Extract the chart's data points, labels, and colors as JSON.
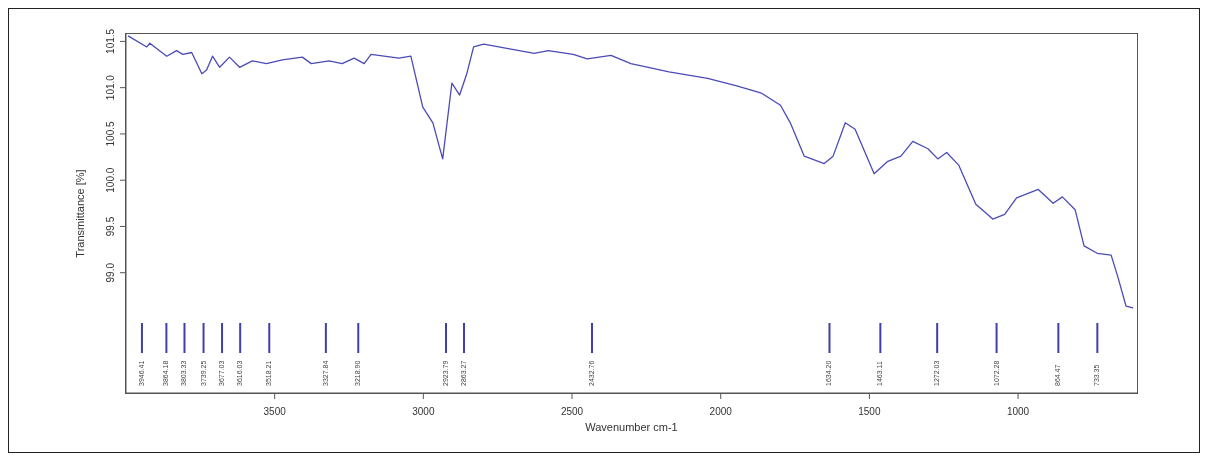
{
  "chart_data": {
    "type": "line",
    "xlabel": "Wavenumber cm-1",
    "ylabel": "Transmittance [%]",
    "xlim": [
      4000,
      600
    ],
    "xticks": [
      3500,
      3000,
      2500,
      2000,
      1500,
      1000
    ],
    "ylim": [
      97.7,
      101.58
    ],
    "yticks": [
      {
        "value": 101.5,
        "label": "101.5"
      },
      {
        "value": 101,
        "label": "101.0"
      },
      {
        "value": 100.5,
        "label": "100.5"
      },
      {
        "value": 100,
        "label": "100.0"
      },
      {
        "value": 99.5,
        "label": "99.5"
      },
      {
        "value": 99,
        "label": "99.0"
      }
    ],
    "grid": false,
    "legend": false,
    "marker": "none",
    "line_style": "solid",
    "series": [
      {
        "color": "#4b4bb8",
        "x": [
          3993,
          3930,
          3920,
          3863,
          3830,
          3809,
          3779,
          3745,
          3729,
          3709,
          3685,
          3652,
          3618,
          3575,
          3528,
          3474,
          3407,
          3377,
          3317,
          3273,
          3233,
          3199,
          3176,
          3082,
          3042,
          3002,
          2968,
          2935,
          2904,
          2878,
          2854,
          2831,
          2797,
          2710,
          2627,
          2580,
          2496,
          2449,
          2369,
          2302,
          2174,
          2044,
          1946,
          1863,
          1799,
          1766,
          1719,
          1652,
          1622,
          1581,
          1548,
          1484,
          1440,
          1394,
          1354,
          1303,
          1270,
          1240,
          1199,
          1142,
          1085,
          1045,
          1005,
          932,
          882,
          851,
          808,
          778,
          734,
          687,
          664,
          637,
          613
        ],
        "values": [
          101.56,
          101.44,
          101.48,
          101.34,
          101.4,
          101.36,
          101.38,
          101.15,
          101.19,
          101.34,
          101.22,
          101.33,
          101.22,
          101.29,
          101.26,
          101.3,
          101.33,
          101.26,
          101.29,
          101.26,
          101.32,
          101.26,
          101.36,
          101.32,
          101.34,
          100.79,
          100.62,
          100.23,
          101.05,
          100.92,
          101.15,
          101.44,
          101.47,
          101.42,
          101.37,
          101.4,
          101.36,
          101.31,
          101.35,
          101.26,
          101.17,
          101.1,
          101.02,
          100.94,
          100.81,
          100.62,
          100.26,
          100.18,
          100.26,
          100.62,
          100.55,
          100.07,
          100.2,
          100.26,
          100.42,
          100.34,
          100.23,
          100.3,
          100.16,
          99.74,
          99.58,
          99.63,
          99.81,
          99.9,
          99.75,
          99.82,
          99.68,
          99.29,
          99.21,
          99.19,
          98.95,
          98.64,
          98.62
        ]
      }
    ],
    "ref_lines": [
      {
        "axis": "x",
        "value": 3946.41,
        "label": "3946.41"
      },
      {
        "axis": "x",
        "value": 3864.18,
        "label": "3864.18"
      },
      {
        "axis": "x",
        "value": 3803.33,
        "label": "3803.33"
      },
      {
        "axis": "x",
        "value": 3739.25,
        "label": "3739.25"
      },
      {
        "axis": "x",
        "value": 3677.03,
        "label": "3677.03"
      },
      {
        "axis": "x",
        "value": 3616.03,
        "label": "3616.03"
      },
      {
        "axis": "x",
        "value": 3518.21,
        "label": "3518.21"
      },
      {
        "axis": "x",
        "value": 3327.84,
        "label": "3327.84"
      },
      {
        "axis": "x",
        "value": 3218.9,
        "label": "3218.90"
      },
      {
        "axis": "x",
        "value": 2923.79,
        "label": "2923.79"
      },
      {
        "axis": "x",
        "value": 2863.27,
        "label": "2863.27"
      },
      {
        "axis": "x",
        "value": 2432.76,
        "label": "2432.76"
      },
      {
        "axis": "x",
        "value": 1634.2,
        "label": "1634.20"
      },
      {
        "axis": "x",
        "value": 1463.11,
        "label": "1463.11"
      },
      {
        "axis": "x",
        "value": 1272.03,
        "label": "1272.03"
      },
      {
        "axis": "x",
        "value": 1072.28,
        "label": "1072.28"
      },
      {
        "axis": "x",
        "value": 864.47,
        "label": "864.47"
      },
      {
        "axis": "x",
        "value": 733.35,
        "label": "733.35"
      }
    ]
  }
}
